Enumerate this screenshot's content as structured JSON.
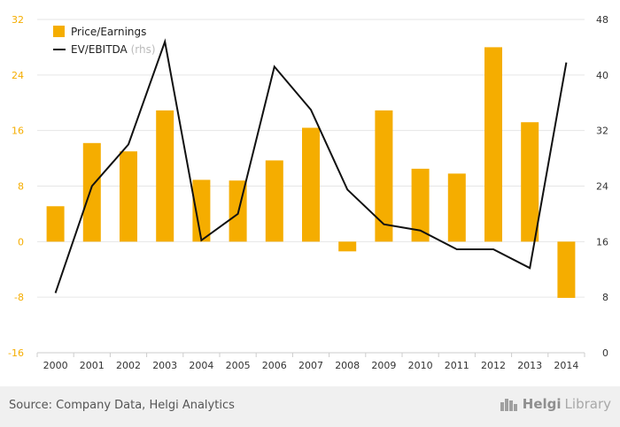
{
  "chart_data": {
    "type": "bar",
    "categories": [
      "2000",
      "2001",
      "2002",
      "2003",
      "2004",
      "2005",
      "2006",
      "2007",
      "2008",
      "2009",
      "2010",
      "2011",
      "2012",
      "2013",
      "2014"
    ],
    "series": [
      {
        "name": "Price/Earnings",
        "type": "bar",
        "axis": "left",
        "color": "#f5ad00",
        "values": [
          5.1,
          14.2,
          13.0,
          18.9,
          8.9,
          8.8,
          11.7,
          16.4,
          -1.4,
          18.9,
          10.5,
          9.8,
          28.0,
          17.2,
          -8.1
        ]
      },
      {
        "name": "EV/EBITDA",
        "name_suffix": "(rhs)",
        "type": "line",
        "axis": "right",
        "color": "#111111",
        "values": [
          8.6,
          24.0,
          30.0,
          44.8,
          16.2,
          20.0,
          41.2,
          35.0,
          23.5,
          18.5,
          17.6,
          14.9,
          14.9,
          12.2,
          41.8
        ]
      }
    ],
    "y_left": {
      "min": -16,
      "max": 32,
      "ticks": [
        -16,
        -8,
        0,
        8,
        16,
        24,
        32
      ],
      "tick_color": "#f5ad00"
    },
    "y_right": {
      "min": 0,
      "max": 48,
      "ticks": [
        0,
        8,
        16,
        24,
        32,
        40,
        48
      ]
    },
    "grid": true,
    "legend_position": "top-left"
  },
  "footer": {
    "source": "Source: Company Data, Helgi Analytics",
    "logo_brand1": "Helgi",
    "logo_brand2": "Library",
    "logo_icon": "buildings-icon"
  }
}
